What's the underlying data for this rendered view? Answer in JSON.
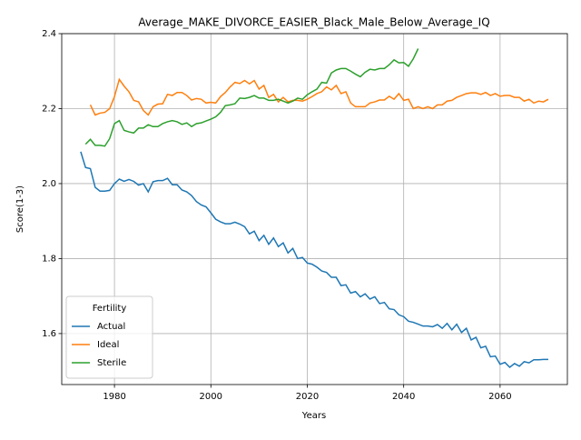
{
  "chart_data": {
    "type": "line",
    "title": "Average_MAKE_DIVORCE_EASIER_Black_Male_Below_Average_IQ",
    "x_label": "Years",
    "y_label": "Score(1-3)",
    "xlim": [
      1969.06,
      2073.96
    ],
    "ylim": [
      1.464,
      2.4
    ],
    "xticks": [
      1980,
      2000,
      2020,
      2040,
      2060
    ],
    "yticks": [
      1.6,
      1.8,
      {
        "value": 2,
        "label": "2.0"
      },
      2.2,
      2.4
    ],
    "grid": true,
    "legend_title": "Fertility",
    "legend_position": "lower left",
    "x": [
      1973,
      1974,
      1975,
      1976,
      1977,
      1978,
      1979,
      1980,
      1981,
      1982,
      1983,
      1984,
      1985,
      1986,
      1987,
      1988,
      1989,
      1990,
      1991,
      1992,
      1993,
      1994,
      1995,
      1996,
      1997,
      1998,
      1999,
      2000,
      2001,
      2002,
      2003,
      2004,
      2005,
      2006,
      2007,
      2008,
      2009,
      2010,
      2011,
      2012,
      2013,
      2014,
      2015,
      2016,
      2017,
      2018,
      2019,
      2020,
      2021,
      2022,
      2023,
      2024,
      2025,
      2026,
      2027,
      2028,
      2029,
      2030,
      2031,
      2032,
      2033,
      2034,
      2035,
      2036,
      2037,
      2038,
      2039,
      2040,
      2041,
      2042,
      2043,
      2044,
      2045,
      2046,
      2047,
      2048,
      2049,
      2050,
      2051,
      2052,
      2053,
      2054,
      2055,
      2056,
      2057,
      2058,
      2059,
      2060,
      2061,
      2062,
      2063,
      2064,
      2065,
      2066,
      2067,
      2068,
      2069,
      2070
    ],
    "series": [
      {
        "name": "Actual",
        "color": "#1f77b4",
        "values": [
          2.085,
          2.043,
          2.04,
          1.99,
          1.98,
          1.98,
          1.982,
          2.0,
          2.012,
          2.006,
          2.011,
          2.006,
          1.996,
          2.0,
          1.978,
          2.005,
          2.008,
          2.008,
          2.014,
          1.997,
          1.997,
          1.983,
          1.978,
          1.968,
          1.952,
          1.943,
          1.938,
          1.922,
          1.905,
          1.898,
          1.893,
          1.893,
          1.897,
          1.892,
          1.885,
          1.866,
          1.873,
          1.848,
          1.862,
          1.838,
          1.855,
          1.832,
          1.842,
          1.815,
          1.827,
          1.8,
          1.803,
          1.788,
          1.785,
          1.777,
          1.767,
          1.763,
          1.75,
          1.75,
          1.728,
          1.73,
          1.708,
          1.712,
          1.698,
          1.706,
          1.692,
          1.698,
          1.68,
          1.683,
          1.666,
          1.664,
          1.65,
          1.645,
          1.633,
          1.63,
          1.625,
          1.62,
          1.62,
          1.618,
          1.624,
          1.614,
          1.627,
          1.61,
          1.625,
          1.603,
          1.614,
          1.583,
          1.59,
          1.562,
          1.566,
          1.538,
          1.54,
          1.518,
          1.523,
          1.51,
          1.52,
          1.513,
          1.525,
          1.522,
          1.53,
          1.53,
          1.531,
          1.531
        ]
      },
      {
        "name": "Ideal",
        "color": "#ff7f0e",
        "values": [
          null,
          null,
          2.21,
          2.183,
          2.188,
          2.19,
          2.2,
          2.232,
          2.278,
          2.26,
          2.245,
          2.222,
          2.218,
          2.195,
          2.183,
          2.205,
          2.212,
          2.213,
          2.238,
          2.235,
          2.243,
          2.243,
          2.235,
          2.223,
          2.227,
          2.225,
          2.215,
          2.217,
          2.215,
          2.232,
          2.243,
          2.258,
          2.27,
          2.267,
          2.275,
          2.266,
          2.275,
          2.252,
          2.262,
          2.23,
          2.238,
          2.218,
          2.23,
          2.218,
          2.222,
          2.222,
          2.22,
          2.225,
          2.232,
          2.24,
          2.245,
          2.258,
          2.25,
          2.262,
          2.24,
          2.245,
          2.215,
          2.205,
          2.205,
          2.205,
          2.215,
          2.218,
          2.223,
          2.223,
          2.233,
          2.225,
          2.24,
          2.222,
          2.225,
          2.2,
          2.205,
          2.2,
          2.205,
          2.2,
          2.21,
          2.21,
          2.22,
          2.222,
          2.23,
          2.235,
          2.24,
          2.242,
          2.242,
          2.238,
          2.243,
          2.235,
          2.24,
          2.233,
          2.235,
          2.235,
          2.23,
          2.23,
          2.22,
          2.225,
          2.215,
          2.22,
          2.218,
          2.225
        ]
      },
      {
        "name": "Sterile",
        "color": "#2ca02c",
        "values": [
          null,
          2.105,
          2.118,
          2.102,
          2.102,
          2.1,
          2.12,
          2.16,
          2.168,
          2.142,
          2.138,
          2.135,
          2.148,
          2.148,
          2.157,
          2.152,
          2.152,
          2.16,
          2.165,
          2.168,
          2.165,
          2.158,
          2.162,
          2.152,
          2.16,
          2.162,
          2.167,
          2.172,
          2.178,
          2.19,
          2.208,
          2.21,
          2.213,
          2.228,
          2.227,
          2.23,
          2.235,
          2.228,
          2.228,
          2.222,
          2.222,
          2.225,
          2.22,
          2.215,
          2.22,
          2.228,
          2.225,
          2.237,
          2.245,
          2.252,
          2.27,
          2.268,
          2.295,
          2.303,
          2.307,
          2.307,
          2.3,
          2.292,
          2.285,
          2.297,
          2.305,
          2.303,
          2.307,
          2.307,
          2.317,
          2.33,
          2.322,
          2.323,
          2.313,
          2.333,
          2.36,
          null,
          null,
          null,
          null,
          null,
          null,
          null,
          null,
          null,
          null,
          null,
          null,
          null,
          null,
          null,
          null,
          null,
          null,
          null,
          null,
          null,
          null,
          null,
          null,
          null,
          null,
          null
        ]
      }
    ]
  }
}
